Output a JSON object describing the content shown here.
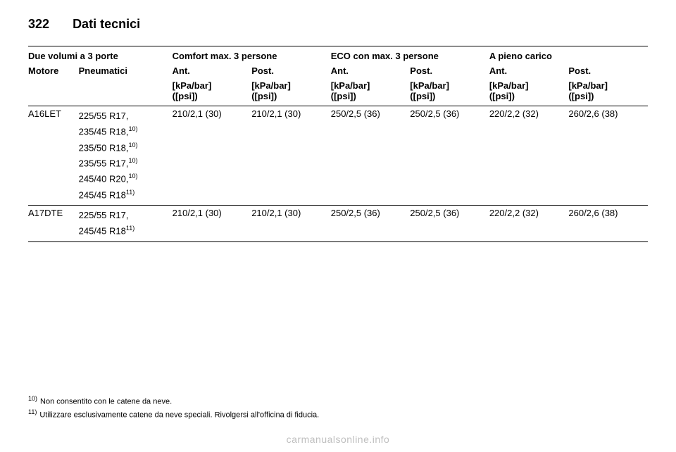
{
  "page": {
    "number": "322",
    "section": "Dati tecnici"
  },
  "group_headers": {
    "vehicle": "Due volumi a 3 porte",
    "comfort": "Comfort max. 3 persone",
    "eco": "ECO con max. 3 persone",
    "full": "A pieno carico"
  },
  "sub_headers": {
    "engine": "Motore",
    "tyres": "Pneumatici",
    "front": "Ant.",
    "rear": "Post."
  },
  "unit_line1": "[kPa/bar]",
  "unit_line2": "([psi])",
  "rows": [
    {
      "engine": "A16LET",
      "tyres": [
        {
          "size": "225/55 R17,",
          "note": ""
        },
        {
          "size": "235/45 R18,",
          "note": "10)"
        },
        {
          "size": "235/50 R18,",
          "note": "10)"
        },
        {
          "size": "235/55 R17,",
          "note": "10)"
        },
        {
          "size": "245/40 R20,",
          "note": "10)"
        },
        {
          "size": "245/45 R18",
          "note": "11)"
        }
      ],
      "vals": [
        "210/2,1 (30)",
        "210/2,1 (30)",
        "250/2,5 (36)",
        "250/2,5 (36)",
        "220/2,2 (32)",
        "260/2,6 (38)"
      ]
    },
    {
      "engine": "A17DTE",
      "tyres": [
        {
          "size": "225/55 R17,",
          "note": ""
        },
        {
          "size": "245/45 R18",
          "note": "11)"
        }
      ],
      "vals": [
        "210/2,1 (30)",
        "210/2,1 (30)",
        "250/2,5 (36)",
        "250/2,5 (36)",
        "220/2,2 (32)",
        "260/2,6 (38)"
      ]
    }
  ],
  "footnotes": [
    {
      "mark": "10)",
      "text": "Non consentito con le catene da neve."
    },
    {
      "mark": "11)",
      "text": "Utilizzare esclusivamente catene da neve speciali. Rivolgersi all'officina di fiducia."
    }
  ],
  "watermark": "carmanualsonline.info"
}
